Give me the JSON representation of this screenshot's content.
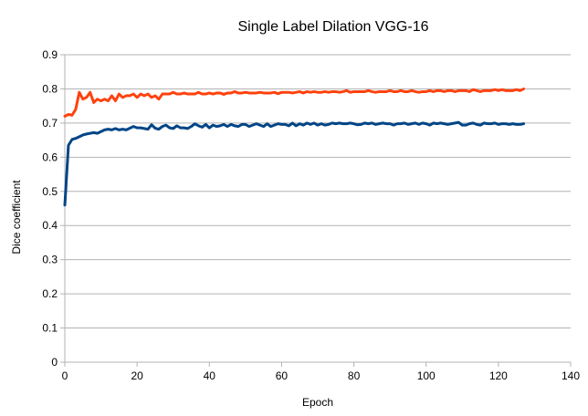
{
  "chart_data": {
    "type": "line",
    "title": "Single Label Dilation VGG-16",
    "xlabel": "Epoch",
    "ylabel": "Dice coefficient",
    "xlim": [
      0,
      140
    ],
    "ylim": [
      0,
      0.9
    ],
    "xticks": [
      0,
      20,
      40,
      60,
      80,
      100,
      120,
      140
    ],
    "yticks": [
      0,
      0.1,
      0.2,
      0.3,
      0.4,
      0.5,
      0.6,
      0.7,
      0.8,
      0.9
    ],
    "xtick_labels": [
      "0",
      "20",
      "40",
      "60",
      "80",
      "100",
      "120",
      "140"
    ],
    "ytick_labels": [
      "0",
      "0.1",
      "0.2",
      "0.3",
      "0.4",
      "0.5",
      "0.6",
      "0.7",
      "0.8",
      "0.9"
    ],
    "grid": true,
    "legend": false,
    "series": [
      {
        "color": "#ff420e",
        "x": [
          0,
          1,
          2,
          3,
          4,
          5,
          6,
          7,
          8,
          9,
          10,
          11,
          12,
          13,
          14,
          15,
          16,
          17,
          18,
          19,
          20,
          21,
          22,
          23,
          24,
          25,
          26,
          27,
          28,
          29,
          30,
          31,
          32,
          33,
          34,
          35,
          36,
          37,
          38,
          39,
          40,
          41,
          42,
          43,
          44,
          45,
          46,
          47,
          48,
          49,
          50,
          51,
          52,
          53,
          54,
          55,
          56,
          57,
          58,
          59,
          60,
          61,
          62,
          63,
          64,
          65,
          66,
          67,
          68,
          69,
          70,
          71,
          72,
          73,
          74,
          75,
          76,
          77,
          78,
          79,
          80,
          81,
          82,
          83,
          84,
          85,
          86,
          87,
          88,
          89,
          90,
          91,
          92,
          93,
          94,
          95,
          96,
          97,
          98,
          99,
          100,
          101,
          102,
          103,
          104,
          105,
          106,
          107,
          108,
          109,
          110,
          111,
          112,
          113,
          114,
          115,
          116,
          117,
          118,
          119,
          120,
          121,
          122,
          123,
          124,
          125,
          126,
          127
        ],
        "values": [
          0.72,
          0.725,
          0.723,
          0.74,
          0.79,
          0.77,
          0.775,
          0.79,
          0.76,
          0.77,
          0.765,
          0.77,
          0.765,
          0.78,
          0.765,
          0.785,
          0.775,
          0.78,
          0.78,
          0.785,
          0.775,
          0.785,
          0.78,
          0.785,
          0.775,
          0.78,
          0.77,
          0.785,
          0.785,
          0.785,
          0.79,
          0.785,
          0.785,
          0.788,
          0.785,
          0.785,
          0.785,
          0.79,
          0.785,
          0.785,
          0.788,
          0.785,
          0.788,
          0.788,
          0.784,
          0.788,
          0.788,
          0.792,
          0.788,
          0.788,
          0.79,
          0.788,
          0.788,
          0.788,
          0.79,
          0.788,
          0.788,
          0.788,
          0.79,
          0.786,
          0.79,
          0.79,
          0.79,
          0.788,
          0.79,
          0.792,
          0.788,
          0.792,
          0.79,
          0.792,
          0.79,
          0.79,
          0.792,
          0.79,
          0.792,
          0.792,
          0.79,
          0.792,
          0.795,
          0.79,
          0.792,
          0.792,
          0.792,
          0.792,
          0.795,
          0.792,
          0.79,
          0.792,
          0.792,
          0.792,
          0.795,
          0.792,
          0.792,
          0.795,
          0.792,
          0.792,
          0.795,
          0.792,
          0.79,
          0.792,
          0.792,
          0.795,
          0.792,
          0.795,
          0.795,
          0.792,
          0.795,
          0.795,
          0.792,
          0.795,
          0.795,
          0.795,
          0.792,
          0.798,
          0.795,
          0.792,
          0.795,
          0.795,
          0.795,
          0.798,
          0.795,
          0.798,
          0.795,
          0.795,
          0.795,
          0.798,
          0.795,
          0.8
        ]
      },
      {
        "color": "#004586",
        "x": [
          0,
          1,
          2,
          3,
          4,
          5,
          6,
          7,
          8,
          9,
          10,
          11,
          12,
          13,
          14,
          15,
          16,
          17,
          18,
          19,
          20,
          21,
          22,
          23,
          24,
          25,
          26,
          27,
          28,
          29,
          30,
          31,
          32,
          33,
          34,
          35,
          36,
          37,
          38,
          39,
          40,
          41,
          42,
          43,
          44,
          45,
          46,
          47,
          48,
          49,
          50,
          51,
          52,
          53,
          54,
          55,
          56,
          57,
          58,
          59,
          60,
          61,
          62,
          63,
          64,
          65,
          66,
          67,
          68,
          69,
          70,
          71,
          72,
          73,
          74,
          75,
          76,
          77,
          78,
          79,
          80,
          81,
          82,
          83,
          84,
          85,
          86,
          87,
          88,
          89,
          90,
          91,
          92,
          93,
          94,
          95,
          96,
          97,
          98,
          99,
          100,
          101,
          102,
          103,
          104,
          105,
          106,
          107,
          108,
          109,
          110,
          111,
          112,
          113,
          114,
          115,
          116,
          117,
          118,
          119,
          120,
          121,
          122,
          123,
          124,
          125,
          126,
          127
        ],
        "values": [
          0.46,
          0.635,
          0.652,
          0.655,
          0.66,
          0.665,
          0.668,
          0.67,
          0.672,
          0.67,
          0.675,
          0.68,
          0.682,
          0.68,
          0.684,
          0.68,
          0.682,
          0.68,
          0.685,
          0.69,
          0.686,
          0.686,
          0.684,
          0.682,
          0.695,
          0.685,
          0.682,
          0.69,
          0.694,
          0.686,
          0.684,
          0.692,
          0.686,
          0.686,
          0.684,
          0.69,
          0.698,
          0.692,
          0.688,
          0.696,
          0.686,
          0.694,
          0.69,
          0.692,
          0.696,
          0.69,
          0.696,
          0.692,
          0.69,
          0.696,
          0.696,
          0.69,
          0.694,
          0.698,
          0.694,
          0.69,
          0.698,
          0.69,
          0.694,
          0.698,
          0.696,
          0.696,
          0.692,
          0.7,
          0.692,
          0.698,
          0.694,
          0.7,
          0.696,
          0.7,
          0.694,
          0.698,
          0.694,
          0.696,
          0.7,
          0.698,
          0.7,
          0.698,
          0.698,
          0.7,
          0.698,
          0.695,
          0.696,
          0.7,
          0.698,
          0.7,
          0.696,
          0.698,
          0.7,
          0.698,
          0.698,
          0.694,
          0.698,
          0.698,
          0.7,
          0.696,
          0.698,
          0.7,
          0.696,
          0.7,
          0.698,
          0.694,
          0.7,
          0.698,
          0.7,
          0.698,
          0.696,
          0.698,
          0.7,
          0.702,
          0.694,
          0.694,
          0.698,
          0.7,
          0.696,
          0.694,
          0.7,
          0.698,
          0.698,
          0.7,
          0.696,
          0.698,
          0.698,
          0.696,
          0.698,
          0.696,
          0.696,
          0.698
        ]
      }
    ]
  }
}
